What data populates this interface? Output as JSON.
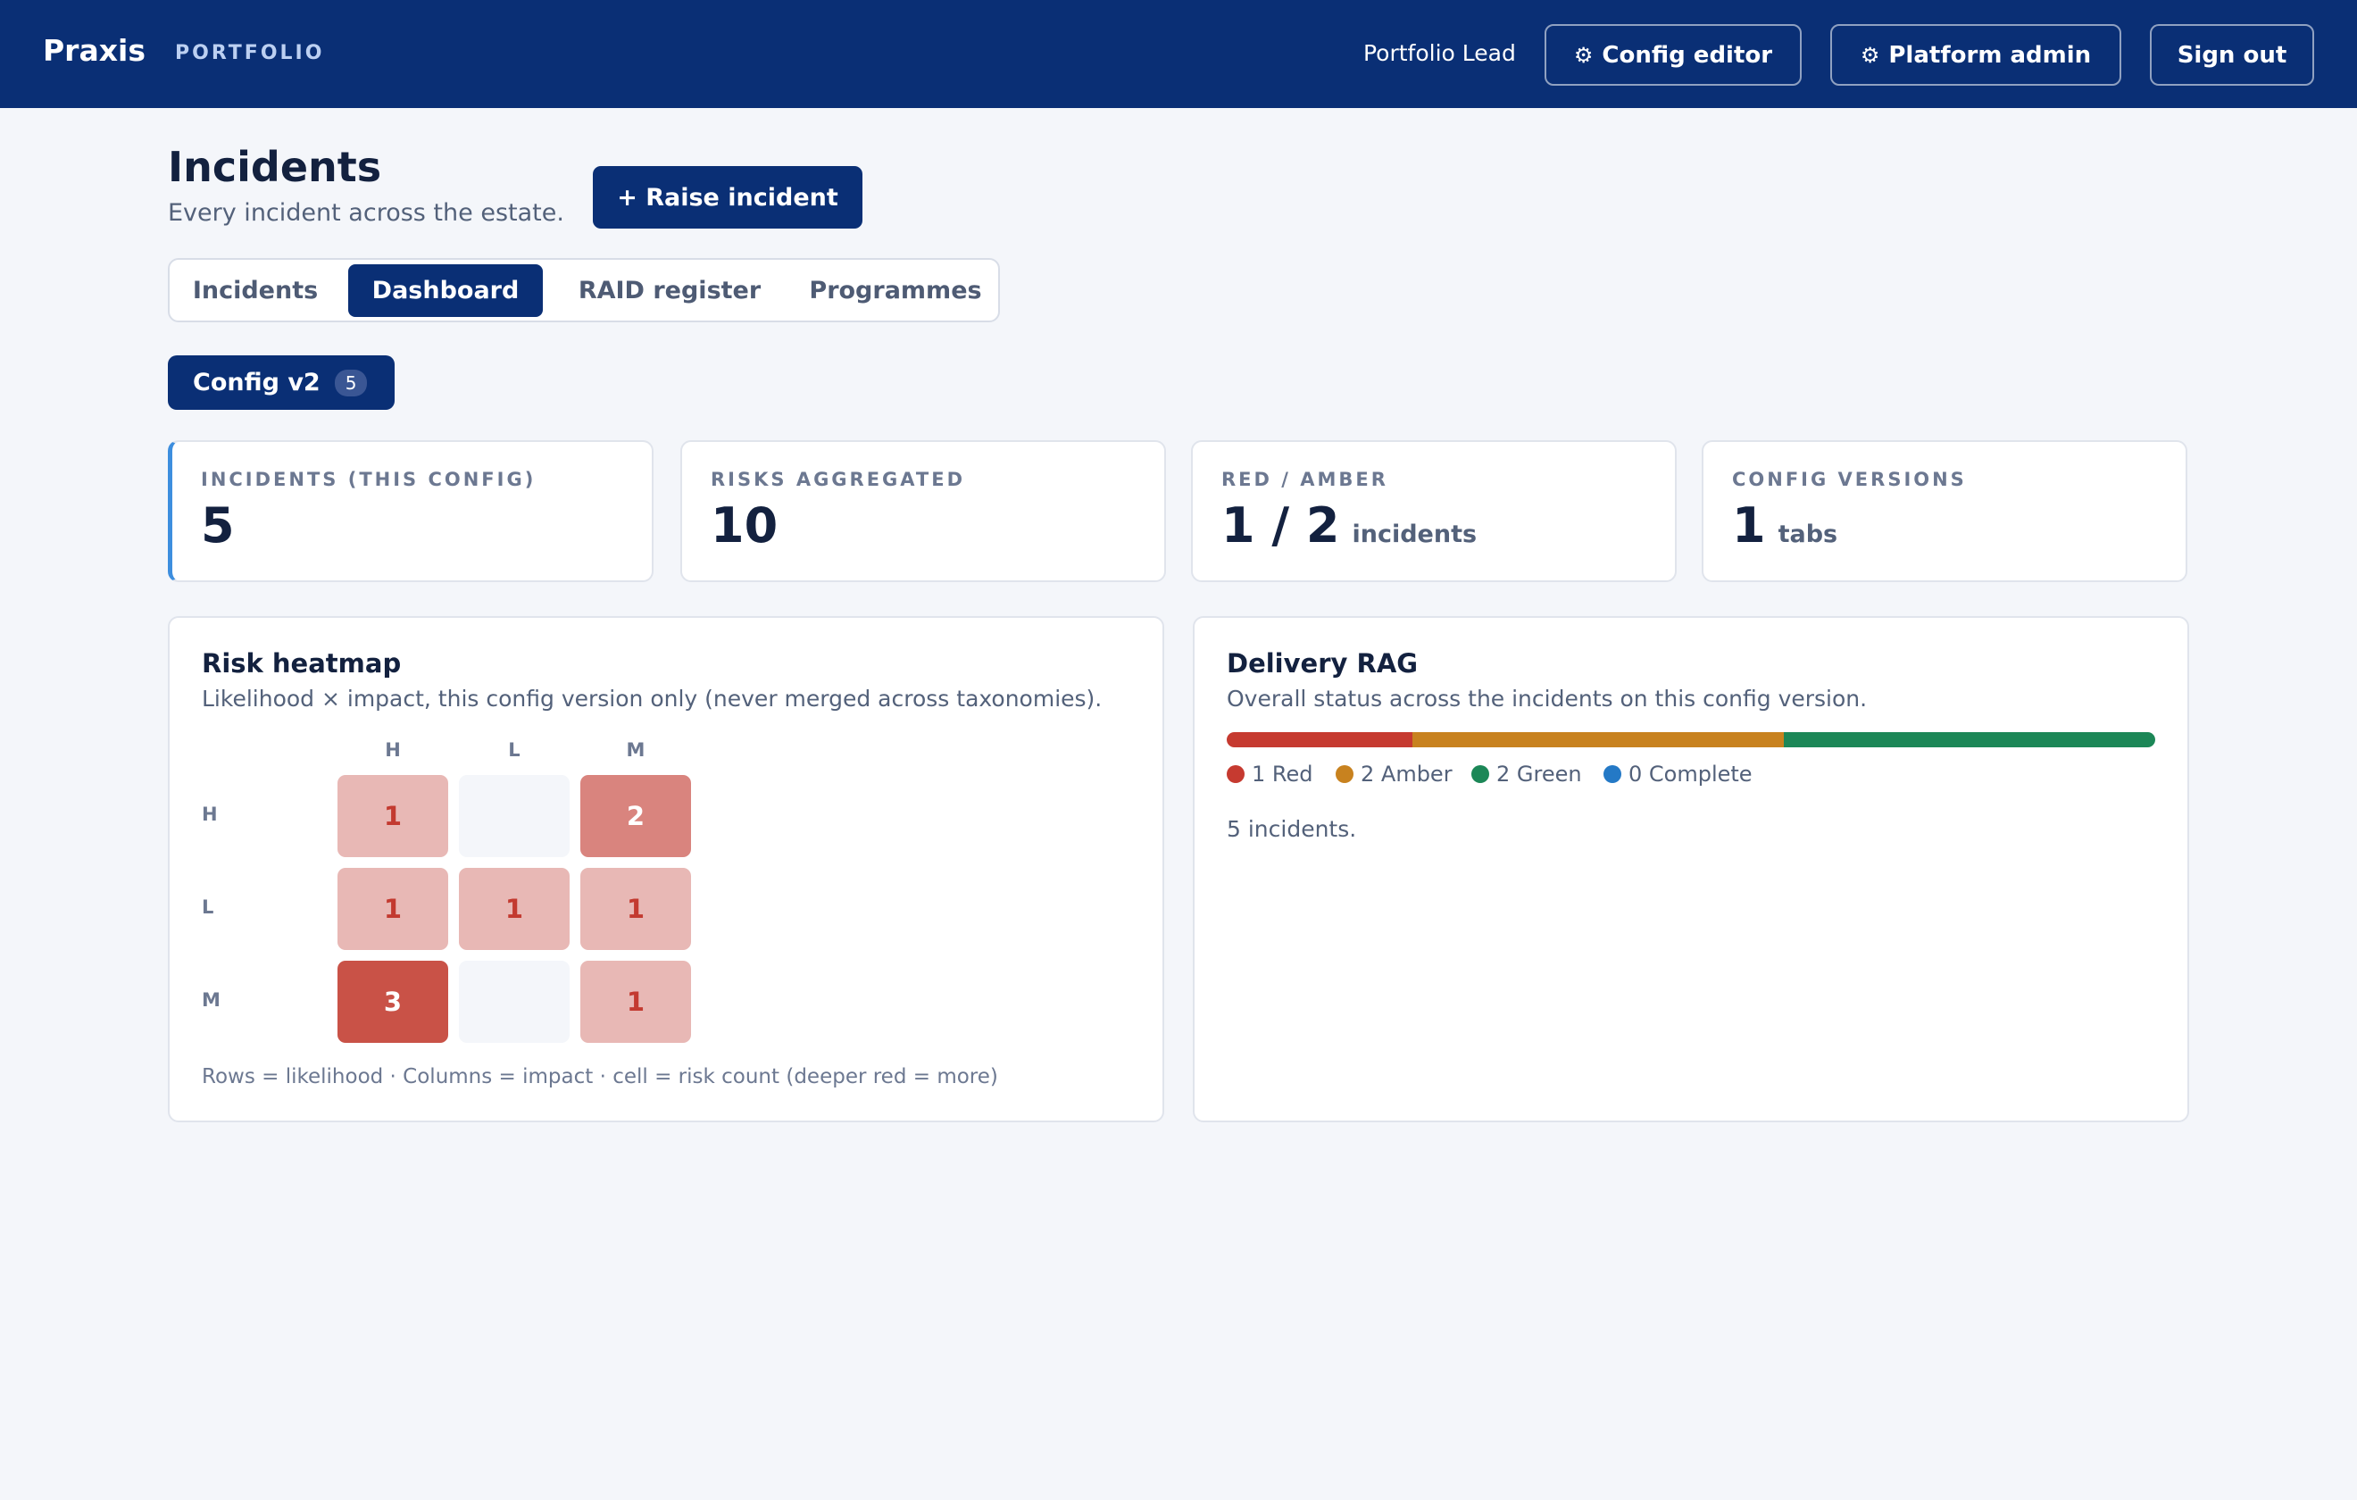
{
  "header": {
    "brand": "Praxis",
    "section": "PORTFOLIO",
    "role": "Portfolio Lead",
    "buttons": {
      "config_editor": "Config editor",
      "platform_admin": "Platform admin",
      "sign_out": "Sign out"
    },
    "gear_glyph": "⚙"
  },
  "page": {
    "title": "Incidents",
    "subtitle": "Every incident across the estate.",
    "raise_button": "+ Raise incident"
  },
  "tabs": [
    {
      "label": "Incidents",
      "active": false
    },
    {
      "label": "Dashboard",
      "active": true
    },
    {
      "label": "RAID register",
      "active": false
    },
    {
      "label": "Programmes",
      "active": false
    }
  ],
  "config": {
    "label": "Config v2",
    "count": "5"
  },
  "kpis": [
    {
      "label": "INCIDENTS (THIS CONFIG)",
      "value": "5",
      "unit": ""
    },
    {
      "label": "RISKS AGGREGATED",
      "value": "10",
      "unit": ""
    },
    {
      "label": "RED / AMBER",
      "value": "1 / 2",
      "unit": "incidents"
    },
    {
      "label": "CONFIG VERSIONS",
      "value": "1",
      "unit": "tabs"
    }
  ],
  "heatmap": {
    "title": "Risk heatmap",
    "description": "Likelihood × impact, this config version only (never merged across taxonomies).",
    "columns": [
      "H",
      "L",
      "M"
    ],
    "rows": [
      "H",
      "L",
      "M"
    ],
    "cells": [
      [
        "1",
        "",
        "2"
      ],
      [
        "1",
        "1",
        "1"
      ],
      [
        "3",
        "",
        "1"
      ]
    ],
    "caption": "Rows = likelihood · Columns = impact · cell = risk count (deeper red = more)"
  },
  "rag": {
    "title": "Delivery RAG",
    "description": "Overall status across the incidents on this config version.",
    "segments": [
      {
        "name": "Red",
        "count": 1,
        "label": "1 Red",
        "color": "#c63a30"
      },
      {
        "name": "Amber",
        "count": 2,
        "label": "2 Amber",
        "color": "#c8821f"
      },
      {
        "name": "Green",
        "count": 2,
        "label": "2 Green",
        "color": "#1c8757"
      },
      {
        "name": "Complete",
        "count": 0,
        "label": "0 Complete",
        "color": "#2479c6"
      }
    ],
    "total_text": "5 incidents."
  }
}
